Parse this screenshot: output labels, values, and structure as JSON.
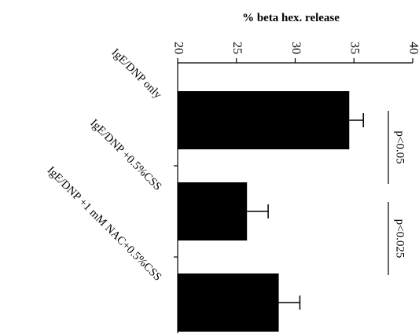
{
  "chart_data": {
    "type": "bar",
    "orientation": "horizontal",
    "title": "% beta hex. release",
    "categories": [
      "IgE/DNP only",
      "IgE/DNP +0.5%CSS",
      "IgE/DNP +1 mM NAC+0.5%CSS"
    ],
    "values": [
      34.6,
      25.9,
      28.6
    ],
    "errors": [
      1.2,
      1.8,
      1.8
    ],
    "xlim": [
      20,
      40
    ],
    "ticks": [
      "20",
      "25",
      "30",
      "35",
      "40"
    ],
    "bar_color": "#000000",
    "annotations": [
      {
        "text": "p<0.05",
        "between": [
          0,
          1
        ]
      },
      {
        "text": "p<0.025",
        "between": [
          1,
          2
        ]
      }
    ],
    "grid": false,
    "legend": "none"
  }
}
